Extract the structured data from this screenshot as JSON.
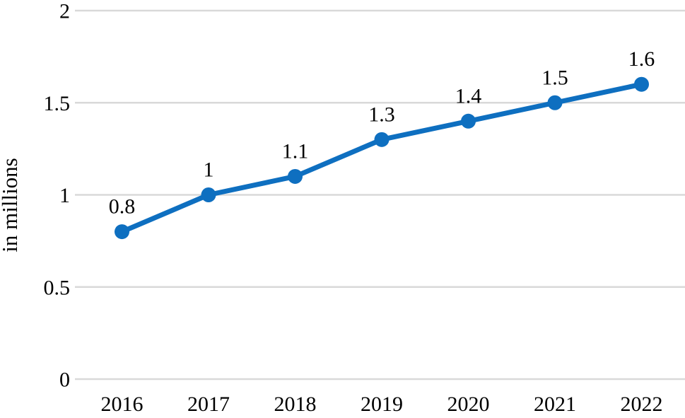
{
  "chart_data": {
    "type": "line",
    "title": "",
    "categories": [
      "2016",
      "2017",
      "2018",
      "2019",
      "2020",
      "2021",
      "2022"
    ],
    "series": [
      {
        "name": "",
        "values": [
          0.8,
          1.0,
          1.1,
          1.3,
          1.4,
          1.5,
          1.6
        ],
        "data_labels": [
          "0.8",
          "1",
          "1.1",
          "1.3",
          "1.4",
          "1.5",
          "1.6"
        ]
      }
    ],
    "xlabel": "",
    "ylabel": "in millions",
    "ylim": [
      0,
      2
    ],
    "yticks": [
      {
        "value": 0,
        "label": "0"
      },
      {
        "value": 0.5,
        "label": "0.5"
      },
      {
        "value": 1,
        "label": "1"
      },
      {
        "value": 1.5,
        "label": "1.5"
      },
      {
        "value": 2,
        "label": "2"
      }
    ],
    "grid": true,
    "legend": false,
    "colors": {
      "line": "#0e6fc0",
      "marker": "#0e6fc0",
      "gridline": "#d9d9d9",
      "text": "#000000",
      "background": "#ffffff"
    }
  }
}
